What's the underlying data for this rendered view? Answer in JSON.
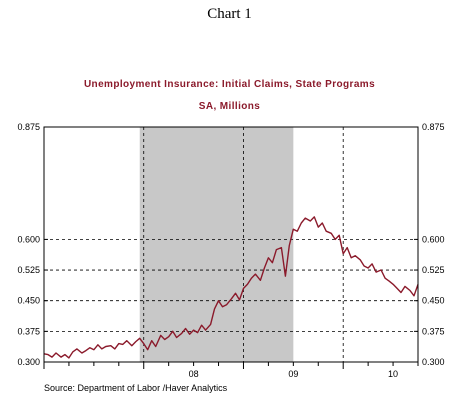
{
  "header": {
    "caption": "Chart 1"
  },
  "chart_data": {
    "type": "line",
    "title": "Unemployment Insurance: Initial Claims, State Programs",
    "subtitle": "SA, Millions",
    "source": "Source:   Department of Labor /Haver Analytics",
    "ylim": [
      0.3,
      0.875
    ],
    "yticks": [
      "0.875",
      "0.600",
      "0.525",
      "0.450",
      "0.375",
      "0.300"
    ],
    "ytick_values": [
      0.875,
      0.6,
      0.525,
      0.45,
      0.375,
      0.3
    ],
    "xlim": [
      2007.0,
      2010.75
    ],
    "xtick_labels": [
      {
        "label": "08",
        "x": 2008.5
      },
      {
        "label": "09",
        "x": 2009.5
      },
      {
        "label": "10",
        "x": 2010.5
      }
    ],
    "year_lines": [
      2008.0,
      2009.0,
      2010.0
    ],
    "shaded_region": {
      "label": "recession",
      "start": 2007.96,
      "end": 2009.5,
      "color": "#c8c8c8"
    },
    "grid": true,
    "series": [
      {
        "color": "#8b1a2b",
        "points": [
          [
            2007.0,
            0.32
          ],
          [
            2007.04,
            0.318
          ],
          [
            2007.08,
            0.312
          ],
          [
            2007.12,
            0.322
          ],
          [
            2007.17,
            0.312
          ],
          [
            2007.21,
            0.318
          ],
          [
            2007.25,
            0.31
          ],
          [
            2007.29,
            0.325
          ],
          [
            2007.33,
            0.332
          ],
          [
            2007.38,
            0.322
          ],
          [
            2007.42,
            0.328
          ],
          [
            2007.46,
            0.335
          ],
          [
            2007.5,
            0.33
          ],
          [
            2007.54,
            0.342
          ],
          [
            2007.58,
            0.332
          ],
          [
            2007.62,
            0.338
          ],
          [
            2007.67,
            0.34
          ],
          [
            2007.71,
            0.332
          ],
          [
            2007.75,
            0.345
          ],
          [
            2007.79,
            0.343
          ],
          [
            2007.83,
            0.352
          ],
          [
            2007.88,
            0.34
          ],
          [
            2007.92,
            0.35
          ],
          [
            2007.96,
            0.358
          ],
          [
            2008.0,
            0.345
          ],
          [
            2008.04,
            0.33
          ],
          [
            2008.08,
            0.352
          ],
          [
            2008.12,
            0.338
          ],
          [
            2008.17,
            0.365
          ],
          [
            2008.21,
            0.355
          ],
          [
            2008.25,
            0.362
          ],
          [
            2008.29,
            0.375
          ],
          [
            2008.33,
            0.36
          ],
          [
            2008.38,
            0.37
          ],
          [
            2008.42,
            0.382
          ],
          [
            2008.46,
            0.368
          ],
          [
            2008.5,
            0.378
          ],
          [
            2008.54,
            0.372
          ],
          [
            2008.58,
            0.39
          ],
          [
            2008.62,
            0.378
          ],
          [
            2008.67,
            0.392
          ],
          [
            2008.71,
            0.43
          ],
          [
            2008.75,
            0.45
          ],
          [
            2008.79,
            0.435
          ],
          [
            2008.83,
            0.44
          ],
          [
            2008.88,
            0.455
          ],
          [
            2008.92,
            0.468
          ],
          [
            2008.96,
            0.452
          ],
          [
            2009.0,
            0.48
          ],
          [
            2009.04,
            0.49
          ],
          [
            2009.08,
            0.505
          ],
          [
            2009.12,
            0.515
          ],
          [
            2009.17,
            0.5
          ],
          [
            2009.21,
            0.53
          ],
          [
            2009.25,
            0.555
          ],
          [
            2009.29,
            0.543
          ],
          [
            2009.33,
            0.575
          ],
          [
            2009.38,
            0.58
          ],
          [
            2009.42,
            0.51
          ],
          [
            2009.46,
            0.585
          ],
          [
            2009.5,
            0.625
          ],
          [
            2009.54,
            0.62
          ],
          [
            2009.58,
            0.64
          ],
          [
            2009.62,
            0.652
          ],
          [
            2009.67,
            0.645
          ],
          [
            2009.71,
            0.655
          ],
          [
            2009.75,
            0.63
          ],
          [
            2009.79,
            0.64
          ],
          [
            2009.83,
            0.62
          ],
          [
            2009.88,
            0.615
          ],
          [
            2009.92,
            0.6
          ],
          [
            2009.96,
            0.61
          ],
          [
            2010.0,
            0.565
          ],
          [
            2010.04,
            0.58
          ],
          [
            2010.08,
            0.555
          ],
          [
            2010.12,
            0.56
          ],
          [
            2010.17,
            0.55
          ],
          [
            2010.21,
            0.535
          ],
          [
            2010.25,
            0.53
          ],
          [
            2010.29,
            0.54
          ],
          [
            2010.33,
            0.52
          ],
          [
            2010.38,
            0.525
          ],
          [
            2010.42,
            0.505
          ],
          [
            2010.46,
            0.498
          ],
          [
            2010.5,
            0.49
          ],
          [
            2010.54,
            0.48
          ],
          [
            2010.58,
            0.47
          ],
          [
            2010.62,
            0.485
          ],
          [
            2010.67,
            0.475
          ],
          [
            2010.71,
            0.462
          ],
          [
            2010.75,
            0.49
          ]
        ]
      }
    ]
  }
}
